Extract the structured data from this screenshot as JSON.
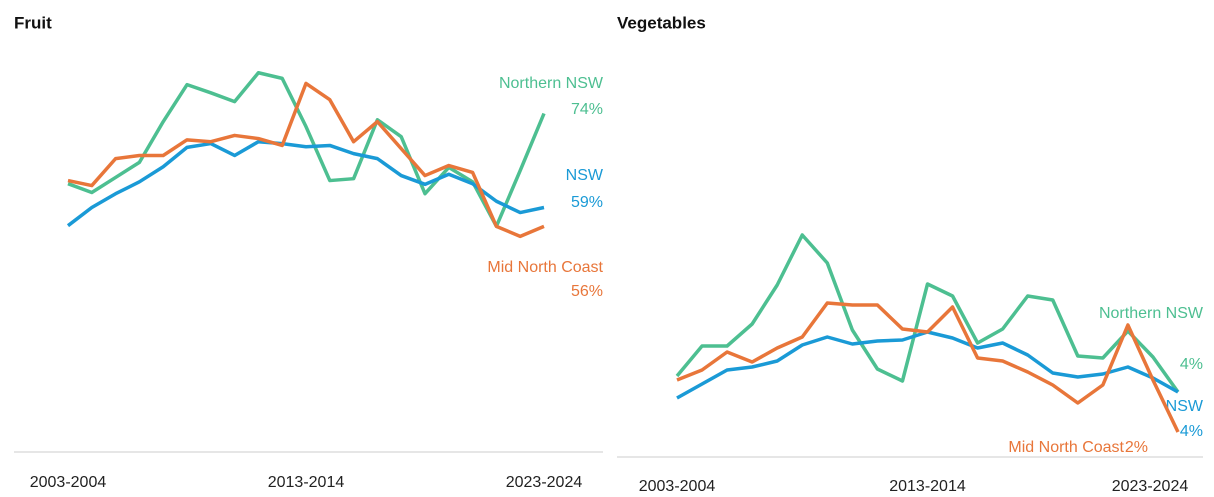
{
  "chart_data": [
    {
      "type": "line",
      "title": "Fruit",
      "categories": [
        "2003-2004",
        null,
        null,
        null,
        null,
        null,
        null,
        null,
        null,
        null,
        "2013-2014",
        null,
        null,
        null,
        null,
        null,
        null,
        null,
        null,
        null,
        "2023-2024"
      ],
      "ylim": [
        20,
        87
      ],
      "series": [
        {
          "name": "Northern NSW",
          "color": "#4dbf91",
          "values": [
            62.8,
            61.4,
            63.8,
            66.2,
            72.7,
            78.6,
            77.3,
            75.9,
            80.5,
            79.6,
            71.9,
            63.3,
            63.6,
            73.0,
            70.3,
            61.2,
            65.4,
            63.1,
            56.0,
            64.9,
            74
          ],
          "value_labels": [
            null,
            null,
            null,
            null,
            null,
            null,
            null,
            null,
            null,
            null,
            null,
            null,
            null,
            null,
            null,
            null,
            null,
            null,
            null,
            null,
            "74%"
          ]
        },
        {
          "name": "NSW",
          "color": "#1a9ad6",
          "values": [
            56.1,
            59,
            61.2,
            63.1,
            65.5,
            68.6,
            69.2,
            67.3,
            69.5,
            69.2,
            68.7,
            68.9,
            67.6,
            66.8,
            64.1,
            62.7,
            64.3,
            62.8,
            60,
            58.2,
            59
          ],
          "value_labels": [
            null,
            null,
            null,
            null,
            null,
            null,
            null,
            null,
            null,
            null,
            null,
            null,
            null,
            null,
            null,
            null,
            null,
            null,
            null,
            null,
            "59%"
          ]
        },
        {
          "name": "Mid North Coast",
          "color": "#e8763a",
          "values": [
            63.3,
            62.5,
            66.8,
            67.3,
            67.3,
            69.8,
            69.5,
            70.5,
            70.0,
            68.9,
            78.8,
            76.2,
            69.5,
            72.7,
            68.4,
            64.1,
            65.7,
            64.6,
            56.0,
            54.4,
            56
          ],
          "value_labels": [
            null,
            null,
            null,
            null,
            null,
            null,
            null,
            null,
            null,
            null,
            null,
            null,
            null,
            null,
            null,
            null,
            null,
            null,
            null,
            null,
            "56%"
          ]
        }
      ]
    },
    {
      "type": "line",
      "title": "Vegetables",
      "categories": [
        "2003-2004",
        null,
        null,
        null,
        null,
        null,
        null,
        null,
        null,
        null,
        "2013-2014",
        null,
        null,
        null,
        null,
        null,
        null,
        null,
        null,
        null,
        "2023-2024"
      ],
      "ylim": [
        1,
        21
      ],
      "series": [
        {
          "name": "Northern NSW",
          "color": "#4dbf91",
          "values": [
            4.8,
            6.3,
            6.3,
            7.4,
            9.35,
            11.85,
            10.45,
            7.1,
            5.15,
            4.55,
            9.4,
            8.8,
            6.45,
            7.15,
            8.8,
            8.6,
            5.8,
            5.7,
            7.05,
            5.75,
            4
          ],
          "value_labels": [
            null,
            null,
            null,
            null,
            null,
            null,
            null,
            null,
            null,
            null,
            null,
            null,
            null,
            null,
            null,
            null,
            null,
            null,
            null,
            null,
            "4%"
          ]
        },
        {
          "name": "NSW",
          "color": "#1a9ad6",
          "values": [
            3.7,
            4.4,
            5.1,
            5.25,
            5.55,
            6.35,
            6.75,
            6.4,
            6.55,
            6.6,
            7.0,
            6.7,
            6.2,
            6.45,
            5.85,
            4.95,
            4.75,
            4.9,
            5.25,
            4.7,
            4
          ],
          "value_labels": [
            null,
            null,
            null,
            null,
            null,
            null,
            null,
            null,
            null,
            null,
            null,
            null,
            null,
            null,
            null,
            null,
            null,
            null,
            null,
            null,
            "4%"
          ]
        },
        {
          "name": "Mid North Coast",
          "color": "#e8763a",
          "values": [
            4.6,
            5.1,
            6.0,
            5.5,
            6.2,
            6.75,
            8.45,
            8.35,
            8.35,
            7.15,
            7.0,
            8.25,
            5.7,
            5.55,
            5.0,
            4.35,
            3.45,
            4.35,
            7.35,
            4.6,
            2
          ],
          "value_labels": [
            null,
            null,
            null,
            null,
            null,
            null,
            null,
            null,
            null,
            null,
            null,
            null,
            null,
            null,
            null,
            null,
            null,
            null,
            null,
            null,
            "2%"
          ]
        }
      ]
    }
  ]
}
